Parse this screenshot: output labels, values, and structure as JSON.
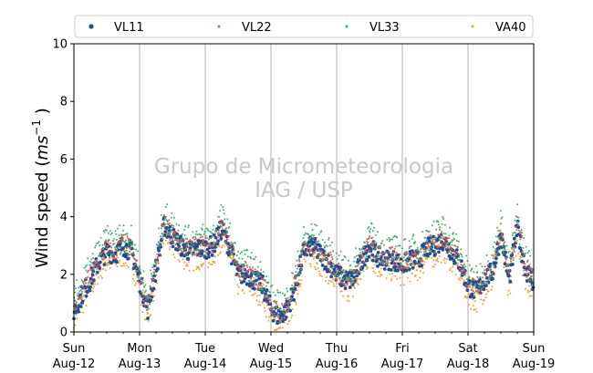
{
  "chart_data": {
    "type": "scatter",
    "ylabel": "Wind speed (ms⁻¹ )",
    "ylabel_main": "Wind speed (",
    "ylabel_unit_base": "ms",
    "ylabel_unit_exp": "−1",
    "ylabel_close": " )",
    "ylim": [
      0,
      10
    ],
    "yticks": [
      "0",
      "2",
      "4",
      "6",
      "8",
      "10"
    ],
    "xlim": [
      "2018-08-12 00:00",
      "2018-08-19 00:00"
    ],
    "xticks": [
      {
        "day": "Sun",
        "date": "Aug-12"
      },
      {
        "day": "Mon",
        "date": "Aug-13"
      },
      {
        "day": "Tue",
        "date": "Aug-14"
      },
      {
        "day": "Wed",
        "date": "Aug-15"
      },
      {
        "day": "Thu",
        "date": "Aug-16"
      },
      {
        "day": "Fri",
        "date": "Aug-17"
      },
      {
        "day": "Sat",
        "date": "Aug-18"
      },
      {
        "day": "Sun",
        "date": "Aug-19"
      }
    ],
    "grid": "vertical at day boundaries",
    "legend_position": "top, outside plot, 4 columns",
    "watermark": [
      "Grupo de Micrometeorologia",
      "IAG / USP"
    ],
    "hour_marks": [
      0,
      3,
      6,
      9,
      12,
      15,
      18,
      21,
      24,
      27,
      30,
      33,
      36,
      39,
      42,
      45,
      48,
      51,
      54,
      57,
      60,
      63,
      66,
      69,
      72,
      75,
      78,
      81,
      84,
      87,
      90,
      93,
      96,
      99,
      102,
      105,
      108,
      111,
      114,
      117,
      120,
      123,
      126,
      129,
      132,
      135,
      138,
      141,
      144,
      147,
      150,
      153,
      156,
      159,
      162,
      165,
      168
    ],
    "series": [
      {
        "name": "VL11",
        "color": "#1f4e96",
        "marker": "large-dot",
        "offset": 0.0,
        "values": [
          0.7,
          1.3,
          1.8,
          2.4,
          2.8,
          2.7,
          3.0,
          2.8,
          1.8,
          0.8,
          2.2,
          3.7,
          3.3,
          3.0,
          2.8,
          2.9,
          2.9,
          3.0,
          3.6,
          2.9,
          2.0,
          2.0,
          1.8,
          1.6,
          0.8,
          0.5,
          0.8,
          1.6,
          2.8,
          3.0,
          2.7,
          2.4,
          2.0,
          1.8,
          1.8,
          2.4,
          3.0,
          2.6,
          2.5,
          2.5,
          2.3,
          2.5,
          2.5,
          2.9,
          3.0,
          3.2,
          2.8,
          2.4,
          1.6,
          1.4,
          1.8,
          2.1,
          3.4,
          1.8,
          3.6,
          2.2,
          1.7
        ]
      },
      {
        "name": "VL22",
        "color": "#e8574c",
        "marker": "small-dot",
        "offset": 0.1,
        "values": [
          0.7,
          1.3,
          1.8,
          2.4,
          2.8,
          2.7,
          3.0,
          2.8,
          1.8,
          0.8,
          2.2,
          3.7,
          3.3,
          3.0,
          2.8,
          2.9,
          2.9,
          3.0,
          3.6,
          2.9,
          2.0,
          2.0,
          1.8,
          1.6,
          0.8,
          0.5,
          0.8,
          1.6,
          2.8,
          3.0,
          2.7,
          2.4,
          2.0,
          1.8,
          1.8,
          2.4,
          3.0,
          2.6,
          2.5,
          2.5,
          2.3,
          2.5,
          2.5,
          2.9,
          3.0,
          3.2,
          2.8,
          2.4,
          1.6,
          1.4,
          1.8,
          2.1,
          3.4,
          1.8,
          3.6,
          2.2,
          1.7
        ]
      },
      {
        "name": "VL33",
        "color": "#3cb371",
        "marker": "small-dot",
        "offset": 0.35,
        "values": [
          0.7,
          1.3,
          1.8,
          2.4,
          2.8,
          2.7,
          3.0,
          2.8,
          1.8,
          0.8,
          2.2,
          3.7,
          3.3,
          3.0,
          2.8,
          2.9,
          2.9,
          3.0,
          3.6,
          2.9,
          2.0,
          2.0,
          1.8,
          1.6,
          0.8,
          0.5,
          0.8,
          1.6,
          2.8,
          3.0,
          2.7,
          2.4,
          2.0,
          1.8,
          1.8,
          2.4,
          3.0,
          2.6,
          2.5,
          2.5,
          2.3,
          2.5,
          2.5,
          2.9,
          3.0,
          3.2,
          2.8,
          2.4,
          1.6,
          1.4,
          1.8,
          2.1,
          3.4,
          1.8,
          3.6,
          2.2,
          1.7
        ]
      },
      {
        "name": "VA40",
        "color": "#f5a033",
        "marker": "small-dot",
        "offset": -0.3,
        "values": [
          0.7,
          1.3,
          1.8,
          2.4,
          2.8,
          2.7,
          3.0,
          2.8,
          1.8,
          0.8,
          2.2,
          3.7,
          3.3,
          3.0,
          2.8,
          2.9,
          2.9,
          3.0,
          3.6,
          2.9,
          2.0,
          2.0,
          1.8,
          1.6,
          0.8,
          0.5,
          0.8,
          1.6,
          2.8,
          3.0,
          2.7,
          2.4,
          2.0,
          1.8,
          1.8,
          2.4,
          3.0,
          2.6,
          2.5,
          2.5,
          2.3,
          2.5,
          2.5,
          2.9,
          3.0,
          3.2,
          2.8,
          2.4,
          1.6,
          1.4,
          1.8,
          2.1,
          3.4,
          1.8,
          3.6,
          2.2,
          1.7
        ]
      }
    ]
  }
}
